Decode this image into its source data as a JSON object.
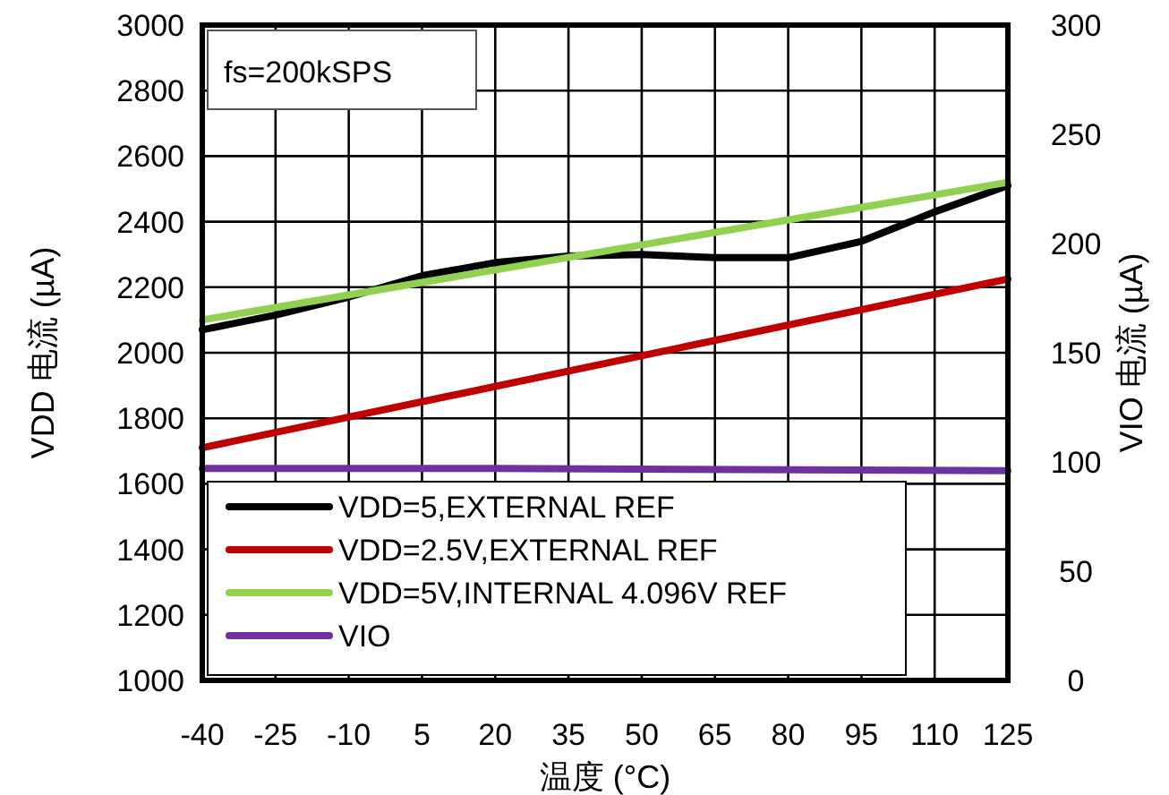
{
  "chart_data": {
    "type": "line",
    "ylabel": "VDD 电流 (µA)",
    "y2label": "VIO 电流 (µA)",
    "xlabel": "温度 (°C)",
    "annotations": [
      "fs=200kSPS"
    ],
    "x": [
      -40,
      -25,
      -10,
      5,
      20,
      35,
      50,
      65,
      80,
      95,
      110,
      125
    ],
    "xlim": [
      -40,
      125
    ],
    "xticks": [
      -40,
      -25,
      -10,
      5,
      20,
      35,
      50,
      65,
      80,
      95,
      110,
      125
    ],
    "ylim": [
      1000,
      3000
    ],
    "yticks": [
      1000,
      1200,
      1400,
      1600,
      1800,
      2000,
      2200,
      2400,
      2600,
      2800,
      3000
    ],
    "y2lim": [
      0,
      300
    ],
    "y2ticks": [
      0,
      50,
      100,
      150,
      200,
      250,
      300
    ],
    "grid": true,
    "legend": "bottom left",
    "marker": "none",
    "line_style": "solid",
    "series": [
      {
        "name": "VDD=5,EXTERNAL REF",
        "color": "#000000",
        "values": [
          2070,
          2115,
          2170,
          2235,
          2275,
          2295,
          2300,
          2290,
          2290,
          2340,
          2430,
          2510
        ]
      },
      {
        "name": "VDD=2.5V,EXTERNAL REF",
        "color": "#c00000",
        "x": [
          -40,
          125
        ],
        "values": [
          1710,
          2225
        ]
      },
      {
        "name": "VDD=5V,INTERNAL 4.096V REF",
        "color": "#92d050",
        "x": [
          -40,
          125
        ],
        "values": [
          2100,
          2520
        ]
      },
      {
        "name": "VIO",
        "color": "#7030a0",
        "axis": "y2",
        "x": [
          -40,
          20,
          125
        ],
        "values": [
          97,
          97,
          96
        ]
      }
    ]
  }
}
